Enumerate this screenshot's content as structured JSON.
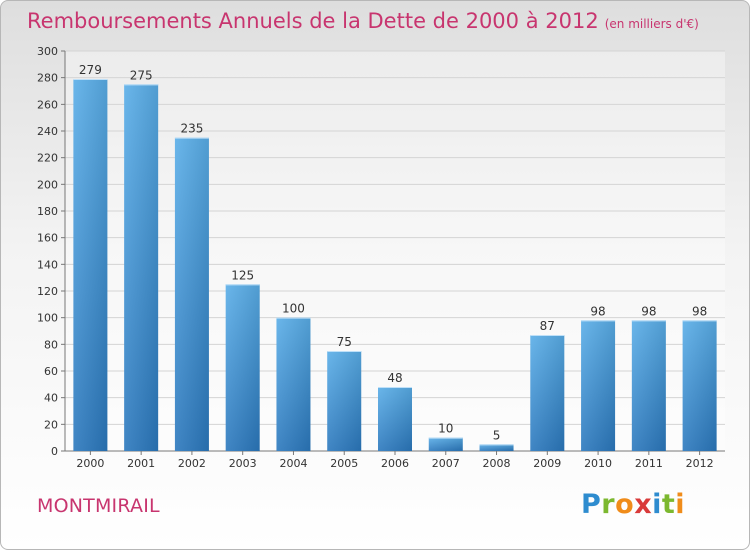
{
  "chart_data": {
    "type": "bar",
    "title": "Remboursements Annuels de la Dette de 2000 à 2012",
    "subtitle": "(en milliers d'€)",
    "categories": [
      "2000",
      "2001",
      "2002",
      "2003",
      "2004",
      "2005",
      "2006",
      "2007",
      "2008",
      "2009",
      "2010",
      "2011",
      "2012"
    ],
    "values": [
      279,
      275,
      235,
      125,
      100,
      75,
      48,
      10,
      5,
      87,
      98,
      98,
      98
    ],
    "ylim": [
      0,
      300
    ],
    "yticks": [
      0,
      20,
      40,
      60,
      80,
      100,
      120,
      140,
      160,
      180,
      200,
      220,
      240,
      260,
      280,
      300
    ],
    "grid": true,
    "bar_color": "#3d8fd6"
  },
  "footer": {
    "city": "MONTMIRAIL"
  },
  "logo": {
    "letters": [
      "P",
      "r",
      "o",
      "x",
      "i",
      "t",
      "i"
    ],
    "colors": [
      "#2e8ccf",
      "#7cb82f",
      "#f08c1a",
      "#d93a3a",
      "#2e8ccf",
      "#7cb82f",
      "#f08c1a"
    ]
  }
}
